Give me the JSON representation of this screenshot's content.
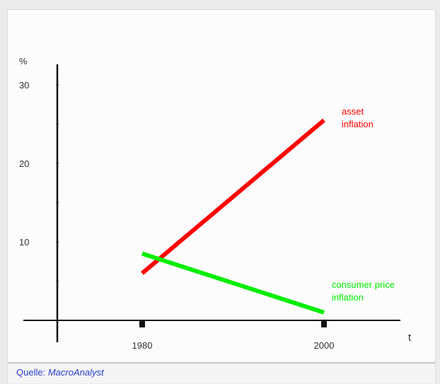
{
  "chart_data": {
    "type": "line",
    "y_unit": "%",
    "x_label": "t",
    "x_ticks": [
      1980,
      2000
    ],
    "y_ticks": [
      10,
      20,
      30
    ],
    "xlim": [
      1970,
      2008
    ],
    "ylim": [
      0,
      33
    ],
    "series": [
      {
        "name": "asset inflation",
        "label_lines": [
          "asset",
          "inflation"
        ],
        "color": "#ff0000",
        "x": [
          1980,
          2000
        ],
        "y": [
          6,
          25.5
        ]
      },
      {
        "name": "consumer price inflation",
        "label_lines": [
          "consumer price",
          "inflation"
        ],
        "color": "#00ee00",
        "x": [
          1980,
          2000
        ],
        "y": [
          8.5,
          1
        ]
      }
    ]
  },
  "source": {
    "label": "Quelle:",
    "name": "MacroAnalyst"
  }
}
